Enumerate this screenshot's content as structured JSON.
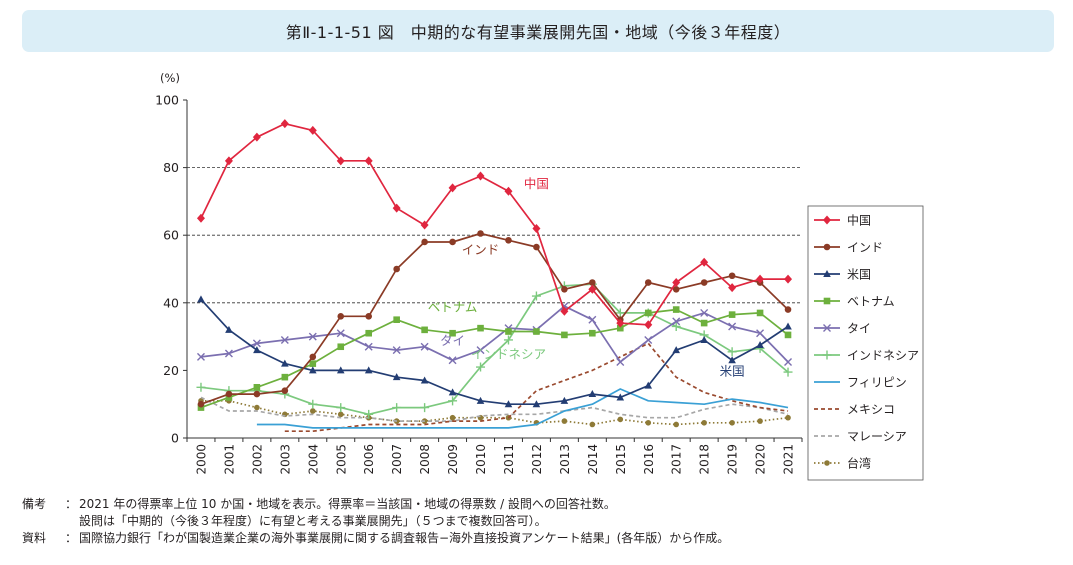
{
  "figure": {
    "title": "第Ⅱ-1-1-51 図　中期的な有望事業展開先国・地域（今後３年程度）"
  },
  "notes": {
    "biko_label": "備考",
    "biko_line1": "2021 年の得票率上位 10 か国・地域を表示。得票率＝当該国・地域の得票数 / 設問への回答社数。",
    "biko_line2": "設問は「中期的（今後３年程度）に有望と考える事業展開先」（５つまで複数回答可）。",
    "shiryo_label": "資料",
    "shiryo_line": "国際協力銀行「わが国製造業企業の海外事業展開に関する調査報告−海外直接投資アンケート結果」(各年版）から作成。",
    "colon": "："
  },
  "chart_data": {
    "type": "line",
    "unit_label": "(%)",
    "ylim": [
      0,
      100
    ],
    "yticks": [
      0,
      20,
      40,
      60,
      80,
      100
    ],
    "dashed_grid": [
      40,
      60,
      80
    ],
    "x": [
      "2000",
      "2001",
      "2002",
      "2003",
      "2004",
      "2005",
      "2006",
      "2007",
      "2008",
      "2009",
      "2010",
      "2011",
      "2012",
      "2013",
      "2014",
      "2015",
      "2016",
      "2017",
      "2018",
      "2019",
      "2020",
      "2021"
    ],
    "legend_position": "right",
    "series": [
      {
        "name": "中国",
        "color": "#e0263f",
        "marker": "diamond",
        "dash": "solid",
        "values": [
          65,
          82,
          89,
          93,
          91,
          82,
          82,
          68,
          63,
          74,
          77.5,
          73,
          62,
          37.5,
          44,
          34,
          33.5,
          46,
          52,
          44.5,
          47,
          47
        ]
      },
      {
        "name": "インド",
        "color": "#8b3b26",
        "marker": "circle",
        "dash": "solid",
        "values": [
          10,
          13,
          13,
          14,
          24,
          36,
          36,
          50,
          58,
          58,
          60.5,
          58.5,
          56.5,
          44,
          46,
          35,
          46,
          44,
          46,
          48,
          46,
          38
        ]
      },
      {
        "name": "米国",
        "color": "#233d73",
        "marker": "triangle",
        "dash": "solid",
        "values": [
          41,
          32,
          26,
          22,
          20,
          20,
          20,
          18,
          17,
          13.5,
          11,
          10,
          10,
          11,
          13,
          12,
          15.5,
          26,
          29,
          23,
          27.5,
          33
        ]
      },
      {
        "name": "ベトナム",
        "color": "#6db03d",
        "marker": "square",
        "dash": "solid",
        "values": [
          9,
          12,
          15,
          18,
          22,
          27,
          31,
          35,
          32,
          31,
          32.5,
          31.5,
          31.5,
          30.5,
          31,
          32.5,
          37,
          38,
          34,
          36.5,
          37,
          30.5
        ]
      },
      {
        "name": "タイ",
        "color": "#7b6fb0",
        "marker": "x",
        "dash": "solid",
        "values": [
          24,
          25,
          28,
          29,
          30,
          31,
          27,
          26,
          27,
          23,
          26,
          32.5,
          32,
          39,
          35,
          22.5,
          29,
          34.5,
          37,
          33,
          31,
          22.5
        ]
      },
      {
        "name": "インドネシア",
        "color": "#7cc97e",
        "marker": "plus",
        "dash": "solid",
        "values": [
          15,
          14,
          14,
          13,
          10,
          9,
          7,
          9,
          9,
          11,
          21,
          29,
          42,
          45,
          45.5,
          37,
          37,
          33,
          30.5,
          25.5,
          26.5,
          19.5
        ]
      },
      {
        "name": "フィリピン",
        "color": "#3aa0d5",
        "marker": "none",
        "dash": "solid",
        "values": [
          null,
          null,
          4,
          4,
          3,
          3,
          3,
          3,
          3,
          3,
          3,
          3,
          4,
          8,
          10,
          14.5,
          11,
          10.5,
          10,
          11.5,
          10.5,
          9
        ]
      },
      {
        "name": "メキシコ",
        "color": "#9a4a2f",
        "marker": "none",
        "dash": "dashed",
        "values": [
          null,
          null,
          null,
          2,
          2,
          3,
          4,
          4,
          4,
          5,
          5,
          6,
          14,
          17,
          20,
          24,
          28,
          18,
          13.5,
          11,
          9,
          8
        ]
      },
      {
        "name": "マレーシア",
        "color": "#a7a7a7",
        "marker": "none",
        "dash": "dashed",
        "values": [
          12,
          8,
          8,
          6.5,
          7,
          6,
          6,
          5,
          5,
          5,
          6.5,
          7,
          7,
          8,
          9,
          7,
          6,
          6,
          8.5,
          10,
          9,
          7
        ]
      },
      {
        "name": "台湾",
        "color": "#8e7a37",
        "marker": "dot",
        "dash": "dotted",
        "values": [
          11,
          11,
          9,
          7,
          8,
          7,
          6,
          5,
          5,
          6,
          6,
          6,
          4.5,
          5,
          4,
          5.5,
          4.5,
          4,
          4.5,
          4.5,
          5,
          6
        ]
      }
    ],
    "annotations": [
      {
        "text": "中国",
        "series": "中国",
        "x": "2012",
        "y": 74
      },
      {
        "text": "インド",
        "series": "インド",
        "x": "2010",
        "y": 54.5
      },
      {
        "text": "ベトナム",
        "series": "ベトナム",
        "x": "2009",
        "y": 37.5
      },
      {
        "text": "タイ",
        "series": "タイ",
        "x": "2009",
        "y": 27.5
      },
      {
        "text": "インドネシア",
        "series": "インドネシア",
        "x": "2011",
        "y": 23.5
      },
      {
        "text": "米国",
        "series": "米国",
        "x": "2019",
        "y": 18.5
      }
    ]
  }
}
